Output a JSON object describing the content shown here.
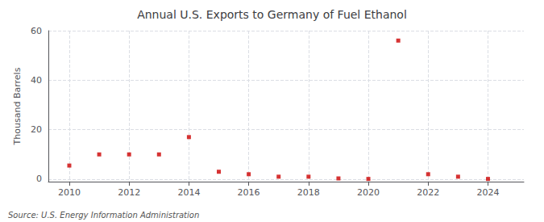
{
  "chart_data": {
    "type": "scatter",
    "title": "Annual U.S. Exports to Germany of Fuel Ethanol",
    "ylabel": "Thousand Barrels",
    "annotations": [
      "Source: U.S. Energy Information Administration"
    ],
    "x": [
      2010,
      2011,
      2012,
      2013,
      2014,
      2015,
      2016,
      2017,
      2018,
      2019,
      2020,
      2021,
      2022,
      2023,
      2024
    ],
    "values": [
      5.5,
      10.0,
      10.0,
      10.0,
      17.0,
      3.0,
      2.0,
      1.0,
      1.0,
      0.3,
      0.1,
      56.0,
      2.0,
      1.0,
      0.1
    ],
    "color": "#cc0000",
    "marker": "square",
    "xlim": [
      2009.3,
      2025.2
    ],
    "ylim": [
      -1,
      60
    ],
    "xticks": [
      2010,
      2012,
      2014,
      2016,
      2018,
      2020,
      2022,
      2024
    ],
    "yticks": [
      0,
      20,
      40,
      60
    ],
    "grid": true
  }
}
